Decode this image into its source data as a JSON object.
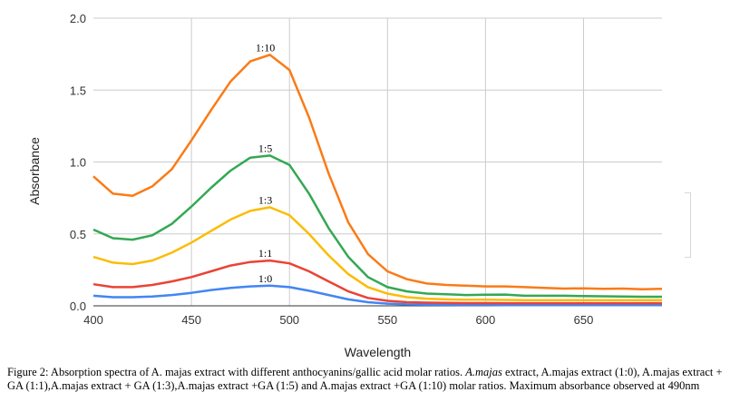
{
  "chart_data": {
    "type": "line",
    "title": "",
    "xlabel": "Wavelength",
    "ylabel": "Absorbance",
    "xlim": [
      400,
      690
    ],
    "ylim": [
      0,
      2.0
    ],
    "x_ticks": [
      400,
      450,
      500,
      550,
      600,
      650
    ],
    "y_ticks": [
      "0.0",
      "0.5",
      "1.0",
      "1.5",
      "2.0"
    ],
    "x": [
      400,
      410,
      420,
      430,
      440,
      450,
      460,
      470,
      480,
      490,
      500,
      510,
      520,
      530,
      540,
      550,
      560,
      570,
      580,
      590,
      600,
      610,
      620,
      630,
      640,
      650,
      660,
      670,
      680,
      690
    ],
    "series": [
      {
        "name": "1:0",
        "color": "#4285f4",
        "values": [
          0.07,
          0.06,
          0.06,
          0.065,
          0.075,
          0.09,
          0.11,
          0.125,
          0.135,
          0.14,
          0.13,
          0.105,
          0.075,
          0.045,
          0.025,
          0.015,
          0.01,
          0.008,
          0.007,
          0.006,
          0.006,
          0.005,
          0.005,
          0.005,
          0.005,
          0.005,
          0.005,
          0.005,
          0.005,
          0.005
        ]
      },
      {
        "name": "1:1",
        "color": "#ea4335",
        "values": [
          0.15,
          0.13,
          0.13,
          0.145,
          0.17,
          0.2,
          0.24,
          0.28,
          0.305,
          0.315,
          0.295,
          0.24,
          0.17,
          0.1,
          0.055,
          0.035,
          0.025,
          0.022,
          0.02,
          0.019,
          0.019,
          0.018,
          0.018,
          0.018,
          0.018,
          0.018,
          0.018,
          0.018,
          0.018,
          0.018
        ]
      },
      {
        "name": "1:3",
        "color": "#fbbc04",
        "values": [
          0.34,
          0.3,
          0.29,
          0.315,
          0.37,
          0.44,
          0.52,
          0.6,
          0.66,
          0.685,
          0.63,
          0.5,
          0.35,
          0.22,
          0.13,
          0.085,
          0.06,
          0.05,
          0.045,
          0.042,
          0.042,
          0.041,
          0.04,
          0.04,
          0.04,
          0.04,
          0.04,
          0.04,
          0.04,
          0.04
        ]
      },
      {
        "name": "1:5",
        "color": "#34a853",
        "values": [
          0.53,
          0.47,
          0.46,
          0.49,
          0.57,
          0.69,
          0.82,
          0.94,
          1.03,
          1.045,
          0.98,
          0.78,
          0.54,
          0.34,
          0.2,
          0.13,
          0.1,
          0.085,
          0.08,
          0.075,
          0.077,
          0.078,
          0.07,
          0.07,
          0.07,
          0.068,
          0.066,
          0.065,
          0.063,
          0.063
        ]
      },
      {
        "name": "1:10",
        "color": "#fa7b17",
        "values": [
          0.9,
          0.78,
          0.765,
          0.83,
          0.95,
          1.15,
          1.36,
          1.56,
          1.7,
          1.745,
          1.64,
          1.31,
          0.92,
          0.58,
          0.36,
          0.24,
          0.185,
          0.155,
          0.145,
          0.14,
          0.135,
          0.135,
          0.13,
          0.125,
          0.12,
          0.122,
          0.118,
          0.12,
          0.115,
          0.118
        ]
      }
    ]
  },
  "caption": {
    "prefix": "Figure 2: Absorption spectra of A. majas extract  with different anthocyanins/gallic acid molar ratios. ",
    "italic": "A.majas",
    "suffix": " extract, A.majas extract  (1:0), A.majas extract  +  GA (1:1),A.majas extract  +  GA (1:3),A.majas extract  +GA  (1:5) and A.majas extract +GA (1:10) molar ratios. Maximum absorbance observed at 490nm"
  }
}
